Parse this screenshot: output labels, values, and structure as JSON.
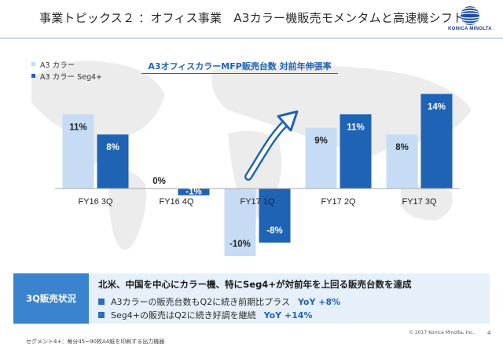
{
  "header": {
    "title": "事業トピックス２ ：オフィス事業　A3カラー機販売モメンタムと高速機シフト",
    "logo_text": "KONICA MINOLTA"
  },
  "chart_data": {
    "type": "bar",
    "title": "A3オフィスカラーMFP販売台数 対前年伸張率",
    "categories": [
      "FY16 3Q",
      "FY16 4Q",
      "FY17 1Q",
      "FY17 2Q",
      "FY17 3Q"
    ],
    "series": [
      {
        "name": "A3 カラー",
        "values": [
          11,
          0,
          -10,
          9,
          8
        ],
        "labels": [
          "11%",
          "0%",
          "-10%",
          "9%",
          "8%"
        ],
        "color": "#c6dcf5"
      },
      {
        "name": "A3 カラー Seg4+",
        "values": [
          8,
          -1,
          -8,
          11,
          14
        ],
        "labels": [
          "8%",
          "-1%",
          "-8%",
          "11%",
          "14%"
        ],
        "color": "#1f63b5"
      }
    ],
    "unit": "%",
    "ylim": [
      -12,
      15
    ],
    "legend": "top-left",
    "grid": false,
    "annotation": "upward-arrow"
  },
  "status": {
    "tag": "3Q販売状況",
    "headline": "北米、中国を中心にカラー機、特にSeg4+が対前年を上回る販売台数を達成",
    "items": [
      {
        "text": "A3カラーの販売台数もQ2に続き前期比プラス",
        "yoy": "YoY +8%"
      },
      {
        "text": "Seg4+の販売はQ2に続き好調を継続",
        "yoy": "YoY +14%"
      }
    ]
  },
  "footer": {
    "note": "セグメント4+：毎分45~90枚A4紙を印刷する出力機器",
    "copyright": "© 2017 Konica Minolta, Inc.",
    "page": "4"
  },
  "colors": {
    "accent": "#1f63b5",
    "light_bar": "#c6dcf5",
    "status_tag": "#3a83cf",
    "status_bg": "#e6f0fa"
  }
}
